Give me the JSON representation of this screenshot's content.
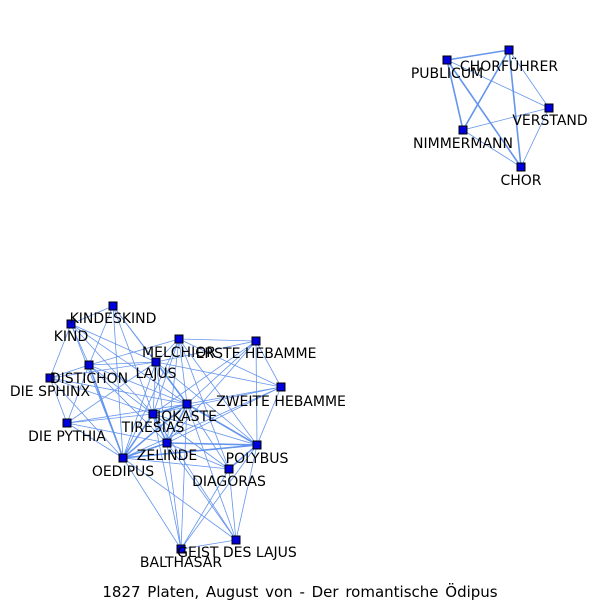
{
  "caption": "1827 Platen, August von - Der romantische Ödipus",
  "colors": {
    "node": "#0000dd",
    "edge": "#6495ed",
    "label": "#000000",
    "background": "#ffffff"
  },
  "nodes": [
    {
      "id": "CHORFUEHRER",
      "label": "CHORFÜHRER"
    },
    {
      "id": "PUBLICUM",
      "label": "PUBLICUM"
    },
    {
      "id": "VERSTAND",
      "label": "VERSTAND"
    },
    {
      "id": "NIMMERMANN",
      "label": "NIMMERMANN"
    },
    {
      "id": "CHOR",
      "label": "CHOR"
    },
    {
      "id": "KINDESKIND",
      "label": "KINDESKIND"
    },
    {
      "id": "KIND",
      "label": "KIND"
    },
    {
      "id": "MELCHIOR",
      "label": "MELCHIOR"
    },
    {
      "id": "ERSTE_HEBAMME",
      "label": "ERSTE HEBAMME"
    },
    {
      "id": "LAJUS",
      "label": "LAJUS"
    },
    {
      "id": "DISTICHON",
      "label": "DISTICHON"
    },
    {
      "id": "DIE_SPHINX",
      "label": "DIE SPHINX"
    },
    {
      "id": "ZWEITE_HEBAMME",
      "label": "ZWEITE HEBAMME"
    },
    {
      "id": "JOKASTE",
      "label": "JOKASTE"
    },
    {
      "id": "TIRESIAS",
      "label": "TIRESIAS"
    },
    {
      "id": "DIE_PYTHIA",
      "label": "DIE PYTHIA"
    },
    {
      "id": "ZELINDE",
      "label": "ZELINDE"
    },
    {
      "id": "POLYBUS",
      "label": "POLYBUS"
    },
    {
      "id": "OEDIPUS",
      "label": "OEDIPUS"
    },
    {
      "id": "DIAGORAS",
      "label": "DIAGORAS"
    },
    {
      "id": "GEIST_DES_LAJUS",
      "label": "GEIST DES LAJUS"
    },
    {
      "id": "BALTHASAR",
      "label": "BALTHASAR"
    }
  ],
  "edges": [
    [
      "PUBLICUM",
      "CHORFUEHRER",
      2
    ],
    [
      "PUBLICUM",
      "NIMMERMANN",
      2
    ],
    [
      "PUBLICUM",
      "CHOR",
      2
    ],
    [
      "PUBLICUM",
      "VERSTAND",
      1
    ],
    [
      "CHORFUEHRER",
      "NIMMERMANN",
      2
    ],
    [
      "CHORFUEHRER",
      "CHOR",
      2
    ],
    [
      "CHORFUEHRER",
      "VERSTAND",
      1
    ],
    [
      "NIMMERMANN",
      "CHOR",
      1
    ],
    [
      "NIMMERMANN",
      "VERSTAND",
      1
    ],
    [
      "VERSTAND",
      "CHOR",
      1
    ],
    [
      "KINDESKIND",
      "KIND",
      1
    ],
    [
      "KINDESKIND",
      "DISTICHON",
      1
    ],
    [
      "KINDESKIND",
      "LAJUS",
      1
    ],
    [
      "KINDESKIND",
      "TIRESIAS",
      1
    ],
    [
      "KINDESKIND",
      "JOKASTE",
      1
    ],
    [
      "KINDESKIND",
      "OEDIPUS",
      1
    ],
    [
      "KIND",
      "DISTICHON",
      1
    ],
    [
      "KIND",
      "DIE_SPHINX",
      1
    ],
    [
      "KIND",
      "TIRESIAS",
      1
    ],
    [
      "KIND",
      "OEDIPUS",
      1
    ],
    [
      "KIND",
      "JOKASTE",
      1
    ],
    [
      "KIND",
      "LAJUS",
      1
    ],
    [
      "MELCHIOR",
      "LAJUS",
      1
    ],
    [
      "MELCHIOR",
      "ERSTE_HEBAMME",
      1
    ],
    [
      "MELCHIOR",
      "ZWEITE_HEBAMME",
      1
    ],
    [
      "MELCHIOR",
      "JOKASTE",
      1
    ],
    [
      "MELCHIOR",
      "TIRESIAS",
      1
    ],
    [
      "MELCHIOR",
      "POLYBUS",
      1
    ],
    [
      "MELCHIOR",
      "OEDIPUS",
      1
    ],
    [
      "MELCHIOR",
      "DISTICHON",
      1
    ],
    [
      "MELCHIOR",
      "ZELINDE",
      1
    ],
    [
      "MELCHIOR",
      "DIAGORAS",
      1
    ],
    [
      "ERSTE_HEBAMME",
      "ZWEITE_HEBAMME",
      1
    ],
    [
      "ERSTE_HEBAMME",
      "JOKASTE",
      1
    ],
    [
      "ERSTE_HEBAMME",
      "LAJUS",
      1
    ],
    [
      "ERSTE_HEBAMME",
      "POLYBUS",
      1
    ],
    [
      "ERSTE_HEBAMME",
      "TIRESIAS",
      1
    ],
    [
      "ERSTE_HEBAMME",
      "ZELINDE",
      1
    ],
    [
      "ZWEITE_HEBAMME",
      "JOKASTE",
      1
    ],
    [
      "ZWEITE_HEBAMME",
      "LAJUS",
      1
    ],
    [
      "ZWEITE_HEBAMME",
      "POLYBUS",
      1
    ],
    [
      "ZWEITE_HEBAMME",
      "TIRESIAS",
      1
    ],
    [
      "ZWEITE_HEBAMME",
      "ZELINDE",
      1
    ],
    [
      "ZWEITE_HEBAMME",
      "OEDIPUS",
      1
    ],
    [
      "LAJUS",
      "DISTICHON",
      1
    ],
    [
      "LAJUS",
      "JOKASTE",
      2
    ],
    [
      "LAJUS",
      "TIRESIAS",
      1
    ],
    [
      "LAJUS",
      "OEDIPUS",
      1
    ],
    [
      "LAJUS",
      "DIE_SPHINX",
      1
    ],
    [
      "LAJUS",
      "DIE_PYTHIA",
      1
    ],
    [
      "LAJUS",
      "ZELINDE",
      1
    ],
    [
      "LAJUS",
      "POLYBUS",
      1
    ],
    [
      "DISTICHON",
      "DIE_SPHINX",
      1
    ],
    [
      "DISTICHON",
      "TIRESIAS",
      1
    ],
    [
      "DISTICHON",
      "OEDIPUS",
      2
    ],
    [
      "DISTICHON",
      "JOKASTE",
      1
    ],
    [
      "DISTICHON",
      "DIE_PYTHIA",
      1
    ],
    [
      "DISTICHON",
      "ZELINDE",
      1
    ],
    [
      "DIE_SPHINX",
      "DIE_PYTHIA",
      1
    ],
    [
      "DIE_SPHINX",
      "OEDIPUS",
      1
    ],
    [
      "DIE_SPHINX",
      "TIRESIAS",
      1
    ],
    [
      "DIE_SPHINX",
      "JOKASTE",
      1
    ],
    [
      "JOKASTE",
      "TIRESIAS",
      2
    ],
    [
      "JOKASTE",
      "OEDIPUS",
      2
    ],
    [
      "JOKASTE",
      "POLYBUS",
      2
    ],
    [
      "JOKASTE",
      "ZELINDE",
      2
    ],
    [
      "JOKASTE",
      "DIAGORAS",
      1
    ],
    [
      "JOKASTE",
      "DIE_PYTHIA",
      1
    ],
    [
      "JOKASTE",
      "GEIST_DES_LAJUS",
      1
    ],
    [
      "JOKASTE",
      "BALTHASAR",
      1
    ],
    [
      "TIRESIAS",
      "OEDIPUS",
      2
    ],
    [
      "TIRESIAS",
      "ZELINDE",
      2
    ],
    [
      "TIRESIAS",
      "POLYBUS",
      1
    ],
    [
      "TIRESIAS",
      "DIE_PYTHIA",
      1
    ],
    [
      "TIRESIAS",
      "DIAGORAS",
      1
    ],
    [
      "TIRESIAS",
      "GEIST_DES_LAJUS",
      1
    ],
    [
      "TIRESIAS",
      "BALTHASAR",
      1
    ],
    [
      "DIE_PYTHIA",
      "OEDIPUS",
      1
    ],
    [
      "DIE_PYTHIA",
      "ZELINDE",
      1
    ],
    [
      "ZELINDE",
      "OEDIPUS",
      2
    ],
    [
      "ZELINDE",
      "POLYBUS",
      2
    ],
    [
      "ZELINDE",
      "DIAGORAS",
      1
    ],
    [
      "ZELINDE",
      "GEIST_DES_LAJUS",
      1
    ],
    [
      "ZELINDE",
      "BALTHASAR",
      1
    ],
    [
      "POLYBUS",
      "OEDIPUS",
      2
    ],
    [
      "POLYBUS",
      "DIAGORAS",
      2
    ],
    [
      "POLYBUS",
      "GEIST_DES_LAJUS",
      1
    ],
    [
      "POLYBUS",
      "BALTHASAR",
      1
    ],
    [
      "OEDIPUS",
      "DIAGORAS",
      1
    ],
    [
      "OEDIPUS",
      "GEIST_DES_LAJUS",
      1
    ],
    [
      "OEDIPUS",
      "BALTHASAR",
      1
    ],
    [
      "DIAGORAS",
      "GEIST_DES_LAJUS",
      1
    ],
    [
      "DIAGORAS",
      "BALTHASAR",
      1
    ],
    [
      "GEIST_DES_LAJUS",
      "BALTHASAR",
      1
    ]
  ]
}
